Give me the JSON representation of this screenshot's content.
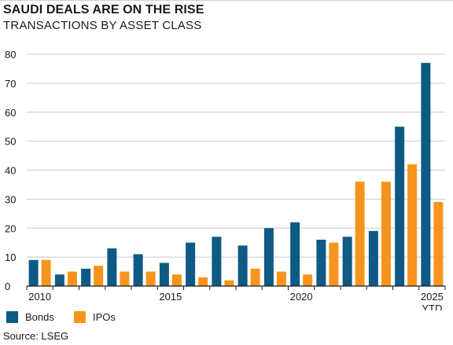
{
  "header": {
    "title": "SAUDI DEALS ARE ON THE RISE",
    "subtitle": "TRANSACTIONS BY ASSET CLASS"
  },
  "footer": {
    "source": "Source: LSEG"
  },
  "colors": {
    "bonds": "#0e5a85",
    "ipos": "#f7941d",
    "grid": "#c8c8c8",
    "axis": "#1a1a1a"
  },
  "chart_data": {
    "type": "bar",
    "title": "SAUDI DEALS ARE ON THE RISE",
    "subtitle": "TRANSACTIONS BY ASSET CLASS",
    "categories": [
      "2010",
      "2011",
      "2012",
      "2013",
      "2014",
      "2015",
      "2016",
      "2017",
      "2018",
      "2019",
      "2020",
      "2021",
      "2022",
      "2023",
      "2024",
      "2025 YTD"
    ],
    "series": [
      {
        "name": "Bonds",
        "values": [
          9,
          4,
          6,
          13,
          11,
          8,
          15,
          17,
          14,
          20,
          22,
          16,
          17,
          19,
          55,
          77
        ]
      },
      {
        "name": "IPOs",
        "values": [
          9,
          5,
          7,
          5,
          5,
          4,
          3,
          2,
          6,
          5,
          4,
          15,
          36,
          36,
          42,
          29
        ]
      }
    ],
    "ylim": [
      0,
      80
    ],
    "yticks": [
      0,
      10,
      20,
      30,
      40,
      50,
      60,
      70,
      80
    ],
    "xtick_labels": [
      {
        "index": 0,
        "lines": [
          "2010"
        ]
      },
      {
        "index": 5,
        "lines": [
          "2015"
        ]
      },
      {
        "index": 10,
        "lines": [
          "2020"
        ]
      },
      {
        "index": 15,
        "lines": [
          "2025",
          "YTD"
        ]
      }
    ],
    "grid": true,
    "legend": "bottom-left",
    "source": "Source: LSEG"
  }
}
